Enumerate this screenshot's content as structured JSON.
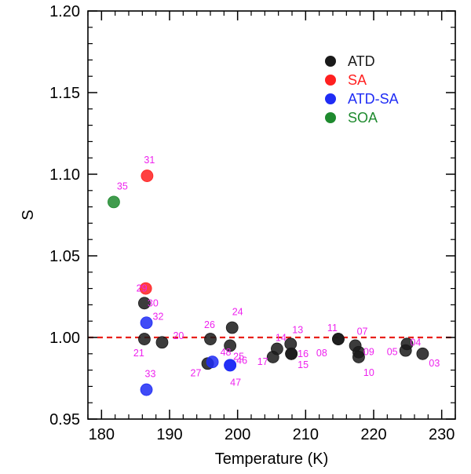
{
  "chart_data": {
    "type": "scatter",
    "xlabel": "Temperature (K)",
    "ylabel": "S",
    "xlim": [
      178,
      232
    ],
    "ylim": [
      0.95,
      1.2
    ],
    "x_ticks": [
      180,
      190,
      200,
      210,
      220,
      230
    ],
    "x_tick_labels": [
      "180",
      "190",
      "200",
      "210",
      "220",
      "230"
    ],
    "y_ticks": [
      0.95,
      1.0,
      1.05,
      1.1,
      1.15,
      1.2
    ],
    "y_tick_labels": [
      "0.95",
      "1.00",
      "1.05",
      "1.10",
      "1.15",
      "1.20"
    ],
    "reference_line": {
      "y": 1.0,
      "style": "dashed",
      "color": "#e8201a"
    },
    "legend_placement": "top-right",
    "series": [
      {
        "name": "ATD",
        "color": "#1a1a1a",
        "points": [
          {
            "x": 186.3,
            "y": 0.999,
            "label": "21"
          },
          {
            "x": 186.3,
            "y": 1.021,
            "label": "30"
          },
          {
            "x": 188.9,
            "y": 0.997,
            "label": "20"
          },
          {
            "x": 195.6,
            "y": 0.984,
            "label": "27"
          },
          {
            "x": 196.0,
            "y": 0.999,
            "label": "26"
          },
          {
            "x": 198.9,
            "y": 0.995,
            "label": "25"
          },
          {
            "x": 199.2,
            "y": 1.006,
            "label": "24"
          },
          {
            "x": 205.2,
            "y": 0.988,
            "label": "17"
          },
          {
            "x": 205.8,
            "y": 0.993,
            "label": "14"
          },
          {
            "x": 207.8,
            "y": 0.996,
            "label": "13"
          },
          {
            "x": 207.9,
            "y": 0.99,
            "label": "15"
          },
          {
            "x": 207.9,
            "y": 0.99,
            "label": "16"
          },
          {
            "x": 214.8,
            "y": 0.999,
            "label": "11"
          },
          {
            "x": 214.8,
            "y": 0.999,
            "label": "08"
          },
          {
            "x": 217.3,
            "y": 0.995,
            "label": "07"
          },
          {
            "x": 217.8,
            "y": 0.991,
            "label": "09"
          },
          {
            "x": 217.8,
            "y": 0.988,
            "label": "10"
          },
          {
            "x": 224.7,
            "y": 0.992,
            "label": "05"
          },
          {
            "x": 224.9,
            "y": 0.996,
            "label": "04"
          },
          {
            "x": 227.2,
            "y": 0.99,
            "label": "03"
          }
        ]
      },
      {
        "name": "SA",
        "color": "#ff2020",
        "points": [
          {
            "x": 186.7,
            "y": 1.099,
            "label": "31"
          },
          {
            "x": 186.5,
            "y": 1.03,
            "label": "29"
          }
        ]
      },
      {
        "name": "ATD-SA",
        "color": "#1f2cf5",
        "points": [
          {
            "x": 186.6,
            "y": 1.009,
            "label": "32"
          },
          {
            "x": 186.6,
            "y": 0.968,
            "label": "33"
          },
          {
            "x": 196.3,
            "y": 0.985,
            "label": "48"
          },
          {
            "x": 198.9,
            "y": 0.983,
            "label": "46"
          },
          {
            "x": 198.9,
            "y": 0.983,
            "label": "47"
          }
        ]
      },
      {
        "name": "SOA",
        "color": "#1e8a2e",
        "points": [
          {
            "x": 181.8,
            "y": 1.083,
            "label": "35"
          }
        ]
      }
    ],
    "point_label_color": "#ee22ee"
  }
}
